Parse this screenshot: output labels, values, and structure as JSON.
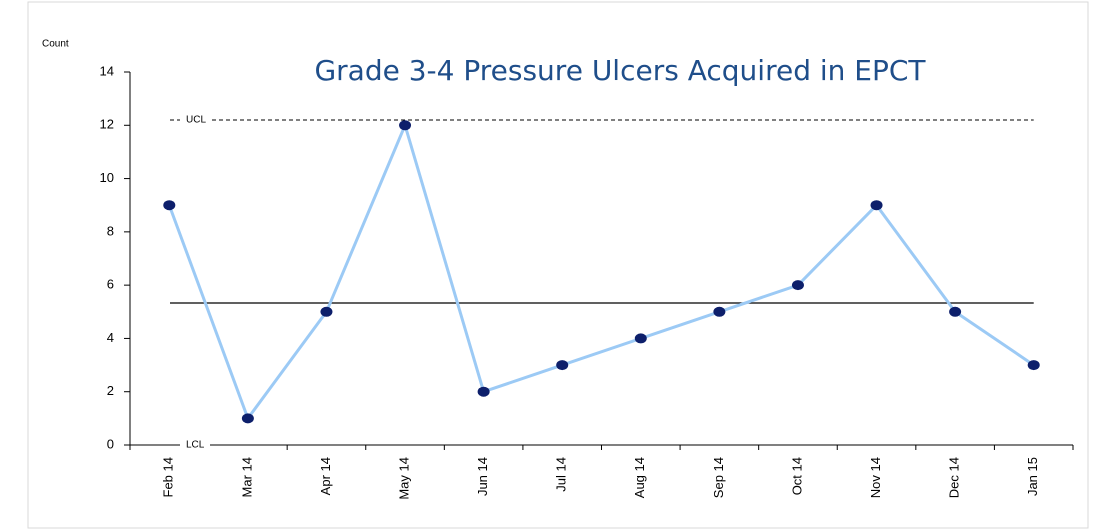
{
  "chart_data": {
    "type": "line",
    "title": "Grade 3-4 Pressure Ulcers Acquired in EPCT",
    "y_label": "Count",
    "categories": [
      "Feb 14",
      "Mar 14",
      "Apr 14",
      "May 14",
      "Jun 14",
      "Jul 14",
      "Aug 14",
      "Sep 14",
      "Oct 14",
      "Nov 14",
      "Dec 14",
      "Jan 15"
    ],
    "series": [
      {
        "name": "Count",
        "color": "#9ccaf5",
        "marker_color": "#0d1f6b",
        "values": [
          9,
          1,
          5,
          12,
          2,
          3,
          4,
          5,
          6,
          9,
          5,
          3
        ]
      }
    ],
    "ylim": [
      0,
      14
    ],
    "yticks": [
      0,
      2,
      4,
      6,
      8,
      10,
      12,
      14
    ],
    "ucl": 12.2,
    "ucl_label": "UCL",
    "center_line": 5.33,
    "lcl": 0,
    "lcl_label": "LCL",
    "grid": false
  }
}
